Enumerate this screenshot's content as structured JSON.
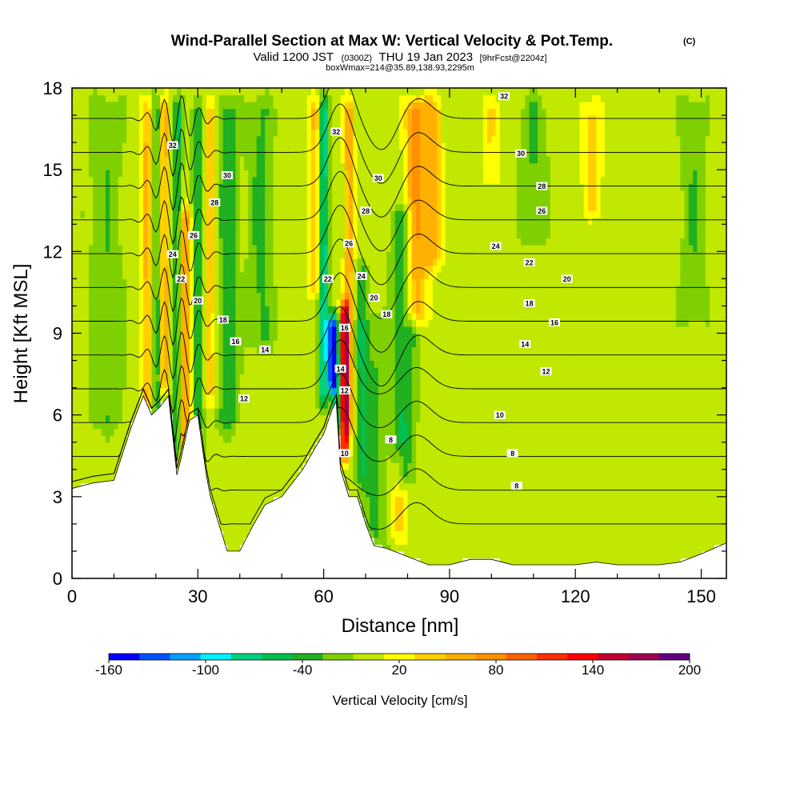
{
  "chart_data": {
    "type": "heatmap",
    "title": "Wind-Parallel Section at Max W: Vertical Velocity & Pot.Temp.",
    "title_mark": "(C)",
    "subtitle_valid": "Valid 1200 JST",
    "subtitle_utc": "(0300Z)",
    "subtitle_date": "THU 19 Jan 2023",
    "subtitle_fcst": "[9hrFcst@2204z]",
    "subtitle_box": "boxWmax=214@35.89,138.93,2295m",
    "xlabel": "Distance [nm]",
    "ylabel": "Height [Kft MSL]",
    "xlim": [
      0,
      156
    ],
    "ylim": [
      0,
      18
    ],
    "xticks": [
      0,
      30,
      60,
      90,
      120,
      150
    ],
    "yticks": [
      0,
      3,
      6,
      9,
      12,
      15,
      18
    ],
    "colorbar": {
      "label": "Vertical Velocity [cm/s]",
      "ticks": [
        -160,
        -100,
        -40,
        20,
        80,
        140,
        200
      ],
      "range": [
        -160,
        200
      ],
      "colors": [
        "#0000ff",
        "#0050ff",
        "#00a0ff",
        "#00f0ff",
        "#00d080",
        "#00c050",
        "#20b020",
        "#7fd000",
        "#c0e800",
        "#ffff00",
        "#ffd000",
        "#ffb000",
        "#ff9000",
        "#ff6000",
        "#ff3000",
        "#ff0000",
        "#c00030",
        "#a00050",
        "#600080"
      ]
    },
    "terrain": [
      [
        0,
        3.3
      ],
      [
        5,
        3.5
      ],
      [
        10,
        3.6
      ],
      [
        14,
        5.5
      ],
      [
        17,
        6.7
      ],
      [
        19,
        6.0
      ],
      [
        21,
        6.3
      ],
      [
        23,
        6.7
      ],
      [
        25,
        3.8
      ],
      [
        26,
        4.4
      ],
      [
        28,
        5.8
      ],
      [
        30,
        6.0
      ],
      [
        32,
        3.8
      ],
      [
        33,
        3.0
      ],
      [
        35,
        2.0
      ],
      [
        37,
        1.0
      ],
      [
        40,
        1.0
      ],
      [
        43,
        1.9
      ],
      [
        46,
        2.7
      ],
      [
        50,
        3.0
      ],
      [
        55,
        4.0
      ],
      [
        58,
        4.8
      ],
      [
        60,
        5.3
      ],
      [
        62,
        6.2
      ],
      [
        63,
        6.5
      ],
      [
        64,
        4.0
      ],
      [
        66,
        3.0
      ],
      [
        68,
        3.0
      ],
      [
        70,
        2.0
      ],
      [
        72,
        1.2
      ],
      [
        75,
        1.1
      ],
      [
        80,
        0.8
      ],
      [
        85,
        0.5
      ],
      [
        90,
        0.5
      ],
      [
        95,
        0.7
      ],
      [
        100,
        0.7
      ],
      [
        105,
        0.5
      ],
      [
        110,
        0.5
      ],
      [
        115,
        0.5
      ],
      [
        120,
        0.5
      ],
      [
        125,
        0.6
      ],
      [
        130,
        0.5
      ],
      [
        135,
        0.5
      ],
      [
        140,
        0.5
      ],
      [
        145,
        0.6
      ],
      [
        150,
        0.9
      ],
      [
        153,
        1.1
      ],
      [
        156,
        1.3
      ]
    ],
    "w_features": [
      {
        "x": 18,
        "z0": 4.5,
        "z1": 18,
        "w": 55,
        "width": 1.5
      },
      {
        "x": 20,
        "z0": 4.5,
        "z1": 18,
        "w": -50,
        "width": 1.2
      },
      {
        "x": 22,
        "z0": 6.5,
        "z1": 18,
        "w": 60,
        "width": 1.2
      },
      {
        "x": 25,
        "z0": 4.0,
        "z1": 18,
        "w": -55,
        "width": 1.2
      },
      {
        "x": 27,
        "z0": 3.8,
        "z1": 14,
        "w": 75,
        "width": 1.5
      },
      {
        "x": 30,
        "z0": 4.0,
        "z1": 18,
        "w": -45,
        "width": 1.3
      },
      {
        "x": 33,
        "z0": 6,
        "z1": 18,
        "w": 45,
        "width": 1.5
      },
      {
        "x": 37,
        "z0": 5,
        "z1": 18,
        "w": -40,
        "width": 2.5
      },
      {
        "x": 58,
        "z0": 10,
        "z1": 18,
        "w": 50,
        "width": 1.8
      },
      {
        "x": 60,
        "z0": 6,
        "z1": 18,
        "w": -90,
        "width": 1.2
      },
      {
        "x": 62,
        "z0": 6.5,
        "z1": 10,
        "w": -150,
        "width": 0.8
      },
      {
        "x": 63,
        "z0": 5,
        "z1": 10,
        "w": -80,
        "width": 1.0
      },
      {
        "x": 65,
        "z0": 4,
        "z1": 10.5,
        "w": 160,
        "width": 1.0
      },
      {
        "x": 66,
        "z0": 5,
        "z1": 18,
        "w": 60,
        "width": 1.2
      },
      {
        "x": 69,
        "z0": 3,
        "z1": 12,
        "w": -40,
        "width": 1.5
      },
      {
        "x": 72,
        "z0": 0,
        "z1": 10,
        "w": -30,
        "width": 3.0
      },
      {
        "x": 79,
        "z0": 3,
        "z1": 14,
        "w": -45,
        "width": 3.0
      },
      {
        "x": 82,
        "z0": 9,
        "z1": 18,
        "w": 75,
        "width": 2.5
      },
      {
        "x": 86,
        "z0": 11,
        "z1": 18,
        "w": 55,
        "width": 2.0
      },
      {
        "x": 100,
        "z0": 14,
        "z1": 18,
        "w": 30,
        "width": 2.0
      },
      {
        "x": 110,
        "z0": 12,
        "z1": 18,
        "w": -30,
        "width": 3.0
      },
      {
        "x": 124,
        "z0": 13,
        "z1": 18,
        "w": 35,
        "width": 2.5
      },
      {
        "x": 45,
        "z0": 8,
        "z1": 18,
        "w": -30,
        "width": 3.0
      },
      {
        "x": 8,
        "z0": 5,
        "z1": 18,
        "w": -25,
        "width": 4.0
      },
      {
        "x": 148,
        "z0": 9,
        "z1": 18,
        "w": -25,
        "width": 3.0
      },
      {
        "x": 78,
        "z0": 1,
        "z1": 5,
        "w": 35,
        "width": 2.0
      }
    ],
    "contour_levels": [
      8,
      10,
      12,
      14,
      16,
      18,
      20,
      22,
      24,
      26,
      28,
      30,
      32
    ],
    "theta_labels": [
      {
        "x": 24,
        "z": 15.9,
        "text": "32"
      },
      {
        "x": 37,
        "z": 14.8,
        "text": "30"
      },
      {
        "x": 34,
        "z": 13.8,
        "text": "28"
      },
      {
        "x": 29,
        "z": 12.6,
        "text": "26"
      },
      {
        "x": 24,
        "z": 11.9,
        "text": "24"
      },
      {
        "x": 26,
        "z": 11.0,
        "text": "22"
      },
      {
        "x": 30,
        "z": 10.2,
        "text": "20"
      },
      {
        "x": 36,
        "z": 9.5,
        "text": "18"
      },
      {
        "x": 39,
        "z": 8.7,
        "text": "16"
      },
      {
        "x": 46,
        "z": 8.4,
        "text": "14"
      },
      {
        "x": 41,
        "z": 6.6,
        "text": "12"
      },
      {
        "x": 63,
        "z": 16.4,
        "text": "32"
      },
      {
        "x": 73,
        "z": 14.7,
        "text": "30"
      },
      {
        "x": 70,
        "z": 13.5,
        "text": "28"
      },
      {
        "x": 66,
        "z": 12.3,
        "text": "26"
      },
      {
        "x": 69,
        "z": 11.1,
        "text": "24"
      },
      {
        "x": 61,
        "z": 11.0,
        "text": "22"
      },
      {
        "x": 72,
        "z": 10.3,
        "text": "20"
      },
      {
        "x": 75,
        "z": 9.7,
        "text": "18"
      },
      {
        "x": 65,
        "z": 9.2,
        "text": "16"
      },
      {
        "x": 64,
        "z": 7.7,
        "text": "14"
      },
      {
        "x": 65,
        "z": 6.9,
        "text": "12"
      },
      {
        "x": 65,
        "z": 4.6,
        "text": "10"
      },
      {
        "x": 76,
        "z": 5.1,
        "text": "8"
      },
      {
        "x": 103,
        "z": 17.7,
        "text": "32"
      },
      {
        "x": 107,
        "z": 15.6,
        "text": "30"
      },
      {
        "x": 112,
        "z": 14.4,
        "text": "28"
      },
      {
        "x": 112,
        "z": 13.5,
        "text": "26"
      },
      {
        "x": 101,
        "z": 12.2,
        "text": "24"
      },
      {
        "x": 109,
        "z": 11.6,
        "text": "22"
      },
      {
        "x": 118,
        "z": 11.0,
        "text": "20"
      },
      {
        "x": 109,
        "z": 10.1,
        "text": "18"
      },
      {
        "x": 115,
        "z": 9.4,
        "text": "16"
      },
      {
        "x": 108,
        "z": 8.6,
        "text": "14"
      },
      {
        "x": 113,
        "z": 7.6,
        "text": "12"
      },
      {
        "x": 102,
        "z": 6.0,
        "text": "10"
      },
      {
        "x": 105,
        "z": 4.6,
        "text": "8"
      },
      {
        "x": 106,
        "z": 3.4,
        "text": "8"
      }
    ]
  }
}
